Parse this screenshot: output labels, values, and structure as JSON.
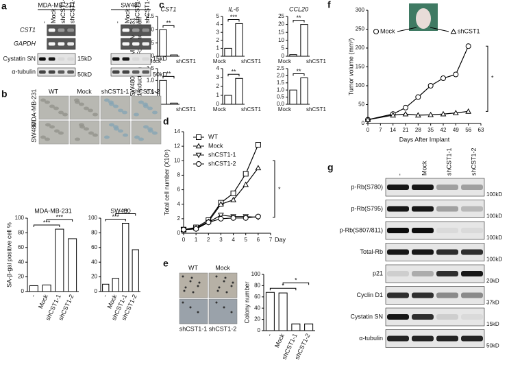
{
  "panel_letters": [
    "a",
    "b",
    "c",
    "d",
    "e",
    "f",
    "g"
  ],
  "blot_a": {
    "cell_lines": [
      "MDA-MB-231",
      "SW480"
    ],
    "lanes": [
      "-",
      "Mock",
      "shCST1-1",
      "shCST1-2"
    ],
    "rows": [
      "CST1",
      "GAPDH",
      "Cystatin SN",
      "α-tubulin"
    ],
    "markers": [
      "15kD",
      "50kD"
    ]
  },
  "images_b": {
    "columns": [
      "WT",
      "Mock",
      "shCST1-1",
      "shCST1-2"
    ],
    "rows": [
      "MDA-MB-231",
      "SW480"
    ]
  },
  "images_e": {
    "labels": [
      "WT",
      "Mock",
      "shCST1-1",
      "shCST1-2"
    ]
  },
  "mouse_legend": [
    "Mock",
    "shCST1"
  ],
  "blot_g": {
    "lanes": [
      "-",
      "Mock",
      "shCST1-1",
      "shCST1-2"
    ],
    "rows": [
      "p-Rb(S780)",
      "p-Rb(S795)",
      "p-Rb(S807/811)",
      "Total-Rb",
      "p21",
      "Cyclin D1",
      "Cystatin SN",
      "α-tubulin"
    ],
    "markers": [
      "100kD",
      "100kD",
      "100kD",
      "100kD",
      "20kD",
      "37kD",
      "15kD",
      "50kD"
    ]
  },
  "chart_data": [
    {
      "type": "bar",
      "title": "MDA-MB-231",
      "y_label": "SA-β-gal positive cell %",
      "categories": [
        "-",
        "Mock",
        "shCST1-1",
        "shCST1-2"
      ],
      "values": [
        8,
        9,
        85,
        72
      ],
      "color": "#ffffff",
      "ylim": [
        0,
        100
      ],
      "yticks": [
        0,
        20,
        40,
        60,
        80,
        100
      ],
      "annotations": [
        "***",
        "***"
      ]
    },
    {
      "type": "bar",
      "title": "SW480",
      "categories": [
        "-",
        "Mock",
        "shCST1-1",
        "shCST1-2"
      ],
      "values": [
        10,
        18,
        93,
        57
      ],
      "color": "#ffffff",
      "ylim": [
        0,
        100
      ],
      "yticks": [
        0,
        20,
        40,
        60,
        80,
        100
      ],
      "annotations": [
        "***",
        "**"
      ]
    },
    {
      "type": "bar",
      "title": "CST1",
      "row_label": "MDA-MB-231",
      "y_label": "Fold induction",
      "categories": [
        "Mock",
        "shCST1"
      ],
      "values": [
        1.0,
        0.05
      ],
      "color": "#ffffff",
      "ylim": [
        0,
        1.5
      ],
      "yticks": [
        {
          "value": 0,
          "label": "0.0"
        },
        0.5,
        {
          "value": 1,
          "label": "1.0"
        },
        1.5
      ],
      "annotations": [
        "**"
      ]
    },
    {
      "type": "bar",
      "title": "IL-6",
      "categories": [
        "Mock",
        "shCST1"
      ],
      "values": [
        1.0,
        4.1
      ],
      "color": "#ffffff",
      "ylim": [
        0,
        5
      ],
      "yticks": [
        0,
        1,
        2,
        3,
        4,
        5
      ],
      "annotations": [
        "***"
      ]
    },
    {
      "type": "bar",
      "title": "CCL20",
      "categories": [
        "Mock",
        "shCST1"
      ],
      "values": [
        1,
        20
      ],
      "color": "#ffffff",
      "ylim": [
        0,
        25
      ],
      "yticks": [
        0,
        5,
        10,
        15,
        20,
        25
      ],
      "annotations": [
        "**"
      ]
    },
    {
      "type": "bar",
      "row_label": "SW480",
      "y_label": "Fold induction",
      "categories": [
        "Mock",
        "shCST1"
      ],
      "values": [
        1.0,
        0.05
      ],
      "color": "#ffffff",
      "ylim": [
        0,
        1.5
      ],
      "yticks": [
        {
          "value": 0,
          "label": "0.0"
        },
        0.5,
        {
          "value": 1,
          "label": "1.0"
        },
        1.5
      ],
      "annotations": [
        "**"
      ]
    },
    {
      "type": "bar",
      "categories": [
        "Mock",
        "shCST1"
      ],
      "values": [
        1.0,
        2.9
      ],
      "color": "#ffffff",
      "ylim": [
        0,
        4
      ],
      "yticks": [
        0,
        1,
        2,
        3,
        4
      ],
      "annotations": [
        "**"
      ]
    },
    {
      "type": "bar",
      "categories": [
        "Mock",
        "shCST1"
      ],
      "values": [
        1.0,
        1.85
      ],
      "color": "#ffffff",
      "ylim": [
        0,
        2.5
      ],
      "yticks": [
        {
          "value": 0,
          "label": "0.0"
        },
        0.5,
        {
          "value": 1,
          "label": "1.0"
        },
        1.5,
        {
          "value": 2,
          "label": "2.0"
        },
        2.5
      ],
      "annotations": [
        "**"
      ]
    },
    {
      "type": "line",
      "y_label": "Total cell number (X10⁵)",
      "x_label": "Day",
      "x": [
        0,
        1,
        2,
        3,
        4,
        5,
        6
      ],
      "xlim": [
        0,
        7
      ],
      "xticks": [
        0,
        1,
        2,
        3,
        4,
        5,
        6,
        7
      ],
      "ylim": [
        0,
        14
      ],
      "yticks": [
        0,
        2,
        4,
        6,
        8,
        10,
        12,
        14
      ],
      "legend": "upper left",
      "annotations": [
        "*"
      ],
      "series": [
        {
          "name": "WT",
          "color": "#000000",
          "marker": "square",
          "values": [
            0.5,
            0.8,
            1.8,
            4.2,
            5.5,
            8.2,
            12.2
          ]
        },
        {
          "name": "Mock",
          "color": "#000000",
          "marker": "triangle",
          "values": [
            0.5,
            0.7,
            1.6,
            4.0,
            4.6,
            6.7,
            9.0
          ]
        },
        {
          "name": "shCST1-1",
          "color": "#000000",
          "marker": "triangle-down",
          "values": [
            0.5,
            0.6,
            1.5,
            2.5,
            2.3,
            2.3,
            2.2
          ]
        },
        {
          "name": "shCST1-2",
          "color": "#000000",
          "marker": "circle",
          "values": [
            0.5,
            0.6,
            1.5,
            2.0,
            2.1,
            2.1,
            2.3
          ]
        }
      ]
    },
    {
      "type": "bar",
      "y_label": "Colony number",
      "categories": [
        "-",
        "Mock",
        "shCST1-1",
        "shCST1-2"
      ],
      "values": [
        68,
        67,
        12,
        12
      ],
      "color": "#ffffff",
      "ylim": [
        0,
        100
      ],
      "yticks": [
        0,
        20,
        40,
        60,
        80,
        100
      ],
      "annotations": [
        "*",
        "*"
      ]
    },
    {
      "type": "line",
      "y_label": "Tumor volume (mm³)",
      "x_label": "Days After Implant",
      "x": [
        0,
        14,
        21,
        28,
        35,
        42,
        49,
        56
      ],
      "xlim": [
        0,
        63
      ],
      "xticks": [
        0,
        7,
        14,
        21,
        28,
        35,
        42,
        49,
        56,
        63
      ],
      "ylim": [
        0,
        300
      ],
      "yticks": [
        0,
        50,
        100,
        150,
        200,
        250,
        300
      ],
      "annotations": [
        "*"
      ],
      "series": [
        {
          "name": "Mock",
          "color": "#000000",
          "marker": "circle",
          "values": [
            10,
            25,
            42,
            70,
            100,
            120,
            130,
            205
          ]
        },
        {
          "name": "shCST1",
          "color": "#000000",
          "marker": "triangle",
          "values": [
            10,
            22,
            25,
            22,
            23,
            25,
            28,
            32
          ]
        }
      ]
    }
  ]
}
